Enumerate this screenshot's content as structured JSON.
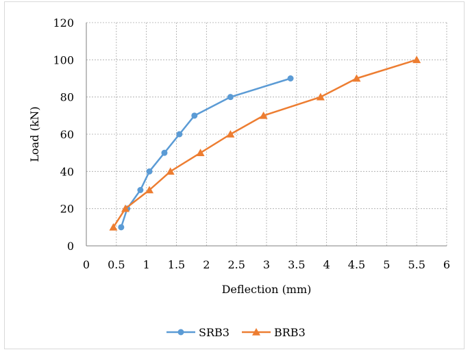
{
  "chart_data": {
    "type": "line",
    "title": "",
    "xlabel": "Deflection (mm)",
    "ylabel": "Load (kN)",
    "xlim": [
      0,
      6
    ],
    "ylim": [
      0,
      120
    ],
    "x_ticks": [
      0,
      0.5,
      1,
      1.5,
      2,
      2.5,
      3,
      3.5,
      4,
      4.5,
      5,
      5.5,
      6
    ],
    "x_tick_labels": [
      "0",
      "0.5",
      "1",
      "1.5",
      "2",
      "2.5",
      "3",
      "3.5",
      "4",
      "4.5",
      "5",
      "5.5",
      "6"
    ],
    "y_ticks": [
      0,
      20,
      40,
      60,
      80,
      100,
      120
    ],
    "y_tick_labels": [
      "0",
      "20",
      "40",
      "60",
      "80",
      "100",
      "120"
    ],
    "grid": true,
    "grid_style": "dashed",
    "legend_position": "bottom",
    "series": [
      {
        "name": "SRB3",
        "color": "#5b9bd5",
        "marker": "circle",
        "x": [
          0.58,
          0.68,
          0.9,
          1.05,
          1.3,
          1.55,
          1.8,
          2.4,
          3.4
        ],
        "y": [
          10,
          20,
          30,
          40,
          50,
          60,
          70,
          80,
          90
        ]
      },
      {
        "name": "BRB3",
        "color": "#ed7d31",
        "marker": "triangle",
        "x": [
          0.45,
          0.65,
          1.05,
          1.4,
          1.9,
          2.4,
          2.95,
          3.9,
          4.5,
          5.5
        ],
        "y": [
          10,
          20,
          30,
          40,
          50,
          60,
          70,
          80,
          90,
          100
        ]
      }
    ]
  }
}
